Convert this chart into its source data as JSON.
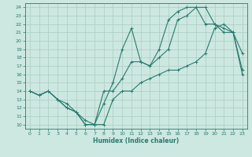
{
  "xlabel": "Humidex (Indice chaleur)",
  "bg_color": "#cce8e0",
  "grid_color": "#aaccc4",
  "line_color": "#2a7a6e",
  "xlim": [
    -0.5,
    23.5
  ],
  "ylim": [
    9.5,
    24.5
  ],
  "yticks": [
    10,
    11,
    12,
    13,
    14,
    15,
    16,
    17,
    18,
    19,
    20,
    21,
    22,
    23,
    24
  ],
  "xticks": [
    0,
    1,
    2,
    3,
    4,
    5,
    6,
    7,
    8,
    9,
    10,
    11,
    12,
    13,
    14,
    15,
    16,
    17,
    18,
    19,
    20,
    21,
    22,
    23
  ],
  "curve1_x": [
    0,
    1,
    2,
    3,
    4,
    5,
    6,
    7,
    8,
    9,
    10,
    11,
    12,
    13,
    14,
    15,
    16,
    17,
    18,
    19,
    20,
    21,
    22,
    23
  ],
  "curve1_y": [
    14,
    13.5,
    14,
    13,
    12,
    11.5,
    10,
    10,
    12.5,
    15,
    19,
    21.5,
    17.5,
    17,
    18,
    19,
    22.5,
    23,
    24,
    24,
    22,
    21.5,
    21,
    18.5
  ],
  "curve2_x": [
    0,
    1,
    2,
    3,
    4,
    5,
    6,
    7,
    8,
    9,
    10,
    11,
    12,
    13,
    14,
    15,
    16,
    17,
    18,
    19,
    20,
    21,
    22,
    23
  ],
  "curve2_y": [
    14,
    13.5,
    14,
    13,
    12,
    11.5,
    10,
    10,
    10,
    13,
    14,
    14,
    15,
    15.5,
    16,
    16.5,
    16.5,
    17,
    17.5,
    18.5,
    21.5,
    22,
    21,
    16.5
  ],
  "curve3_x": [
    0,
    1,
    2,
    3,
    4,
    5,
    6,
    7,
    8,
    9,
    10,
    11,
    12,
    13,
    14,
    15,
    16,
    17,
    18,
    19,
    20,
    21,
    22,
    23
  ],
  "curve3_y": [
    14,
    13.5,
    14,
    13,
    12.5,
    11.5,
    10.5,
    10,
    14,
    14,
    15.5,
    17.5,
    17.5,
    17,
    19,
    22.5,
    23.5,
    24,
    24,
    22,
    22,
    21,
    21,
    16
  ]
}
